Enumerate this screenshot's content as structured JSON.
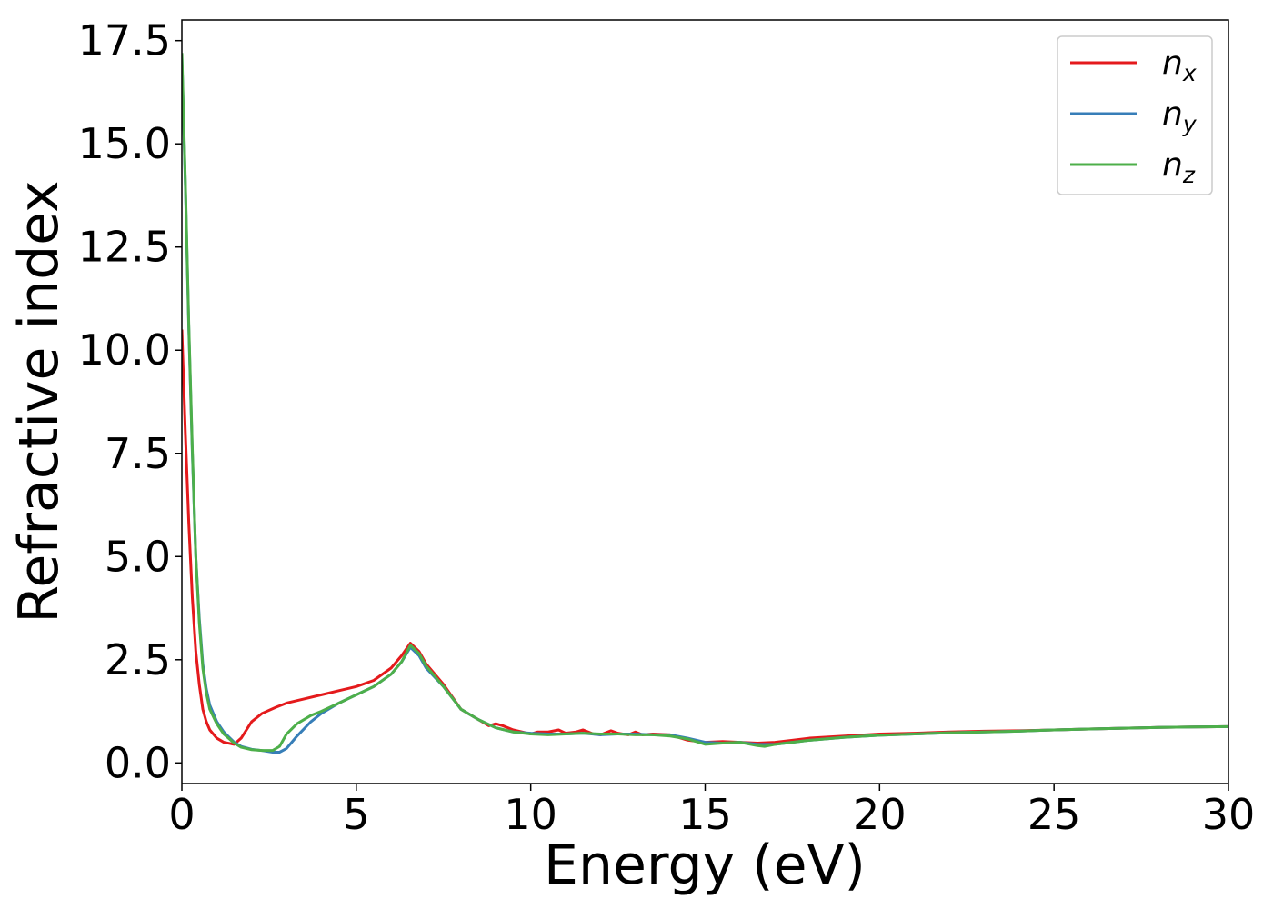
{
  "chart_data": {
    "type": "line",
    "xlabel": "Energy (eV)",
    "ylabel": "Refractive index",
    "xlim": [
      0,
      30
    ],
    "ylim": [
      -0.5,
      18.0
    ],
    "xticks": [
      0,
      5,
      10,
      15,
      20,
      25,
      30
    ],
    "xtick_labels": [
      "0",
      "5",
      "10",
      "15",
      "20",
      "25",
      "30"
    ],
    "yticks": [
      0.0,
      2.5,
      5.0,
      7.5,
      10.0,
      12.5,
      15.0,
      17.5
    ],
    "ytick_labels": [
      "0.0",
      "2.5",
      "5.0",
      "7.5",
      "10.0",
      "12.5",
      "15.0",
      "17.5"
    ],
    "grid": false,
    "legend_position": "top-right",
    "series": [
      {
        "name": "n_x",
        "label_main": "n",
        "label_sub": "x",
        "color": "#e41a1c",
        "x": [
          0,
          0.1,
          0.2,
          0.3,
          0.4,
          0.5,
          0.6,
          0.7,
          0.8,
          1.0,
          1.2,
          1.5,
          1.7,
          2.0,
          2.3,
          2.7,
          3.0,
          3.5,
          4.0,
          4.5,
          5.0,
          5.5,
          6.0,
          6.3,
          6.55,
          6.8,
          7.0,
          7.5,
          8.0,
          8.5,
          8.8,
          9.0,
          9.2,
          9.5,
          10.0,
          10.2,
          10.5,
          10.8,
          11.0,
          11.3,
          11.5,
          11.8,
          12.0,
          12.3,
          12.5,
          12.8,
          13.0,
          13.2,
          13.5,
          14.0,
          14.5,
          15.0,
          15.5,
          16.0,
          16.5,
          17.0,
          17.5,
          18.0,
          19.0,
          20.0,
          21.0,
          22.0,
          23.0,
          24.0,
          25.0,
          26.0,
          27.0,
          28.0,
          29.0,
          30.0
        ],
        "y": [
          10.5,
          8.0,
          5.8,
          4.0,
          2.7,
          1.9,
          1.3,
          1.0,
          0.8,
          0.6,
          0.5,
          0.45,
          0.6,
          1.0,
          1.2,
          1.35,
          1.45,
          1.55,
          1.65,
          1.75,
          1.85,
          2.0,
          2.3,
          2.6,
          2.9,
          2.7,
          2.4,
          1.9,
          1.3,
          1.05,
          0.9,
          0.95,
          0.9,
          0.8,
          0.7,
          0.75,
          0.75,
          0.8,
          0.72,
          0.75,
          0.8,
          0.7,
          0.68,
          0.78,
          0.72,
          0.68,
          0.75,
          0.68,
          0.7,
          0.68,
          0.55,
          0.5,
          0.52,
          0.5,
          0.48,
          0.5,
          0.55,
          0.6,
          0.65,
          0.7,
          0.72,
          0.75,
          0.77,
          0.78,
          0.8,
          0.82,
          0.84,
          0.86,
          0.87,
          0.88
        ]
      },
      {
        "name": "n_y",
        "label_main": "n",
        "label_sub": "y",
        "color": "#377eb8",
        "x": [
          0,
          0.1,
          0.2,
          0.3,
          0.4,
          0.5,
          0.6,
          0.7,
          0.8,
          1.0,
          1.2,
          1.5,
          1.7,
          2.0,
          2.3,
          2.6,
          2.8,
          3.0,
          3.3,
          3.7,
          4.0,
          4.5,
          5.0,
          5.5,
          6.0,
          6.3,
          6.55,
          6.8,
          7.0,
          7.5,
          8.0,
          8.5,
          9.0,
          9.5,
          10.0,
          10.5,
          11.0,
          11.5,
          12.0,
          12.5,
          13.0,
          13.5,
          14.0,
          14.5,
          15.0,
          15.5,
          16.0,
          16.5,
          17.0,
          17.5,
          18.0,
          19.0,
          20.0,
          21.0,
          22.0,
          23.0,
          24.0,
          25.0,
          26.0,
          27.0,
          28.0,
          29.0,
          30.0
        ],
        "y": [
          17.1,
          14.0,
          10.5,
          7.5,
          5.0,
          3.5,
          2.4,
          1.8,
          1.4,
          1.0,
          0.75,
          0.5,
          0.4,
          0.33,
          0.3,
          0.26,
          0.26,
          0.35,
          0.65,
          1.0,
          1.2,
          1.45,
          1.65,
          1.85,
          2.15,
          2.45,
          2.8,
          2.6,
          2.3,
          1.85,
          1.3,
          1.05,
          0.85,
          0.75,
          0.72,
          0.7,
          0.7,
          0.72,
          0.68,
          0.7,
          0.7,
          0.68,
          0.68,
          0.6,
          0.5,
          0.48,
          0.5,
          0.45,
          0.45,
          0.5,
          0.55,
          0.62,
          0.67,
          0.7,
          0.73,
          0.75,
          0.77,
          0.8,
          0.82,
          0.84,
          0.86,
          0.87,
          0.88
        ]
      },
      {
        "name": "n_z",
        "label_main": "n",
        "label_sub": "z",
        "color": "#4daf4a",
        "x": [
          0,
          0.1,
          0.2,
          0.3,
          0.4,
          0.5,
          0.6,
          0.7,
          0.8,
          1.0,
          1.2,
          1.5,
          1.7,
          2.0,
          2.3,
          2.6,
          2.8,
          3.0,
          3.3,
          3.7,
          4.0,
          4.5,
          5.0,
          5.5,
          6.0,
          6.3,
          6.55,
          6.8,
          7.0,
          7.5,
          8.0,
          8.5,
          9.0,
          9.5,
          10.0,
          10.5,
          11.0,
          11.5,
          12.0,
          12.5,
          13.0,
          13.5,
          14.0,
          14.5,
          15.0,
          15.5,
          16.0,
          16.5,
          16.7,
          17.0,
          17.5,
          18.0,
          19.0,
          20.0,
          21.0,
          22.0,
          23.0,
          24.0,
          25.0,
          26.0,
          27.0,
          28.0,
          29.0,
          30.0
        ],
        "y": [
          17.2,
          14.1,
          10.6,
          7.6,
          5.0,
          3.4,
          2.3,
          1.7,
          1.3,
          0.95,
          0.7,
          0.48,
          0.38,
          0.32,
          0.3,
          0.3,
          0.4,
          0.7,
          0.95,
          1.15,
          1.25,
          1.45,
          1.65,
          1.85,
          2.15,
          2.45,
          2.85,
          2.65,
          2.35,
          1.85,
          1.3,
          1.05,
          0.85,
          0.75,
          0.7,
          0.68,
          0.7,
          0.72,
          0.7,
          0.7,
          0.68,
          0.68,
          0.65,
          0.58,
          0.45,
          0.48,
          0.5,
          0.42,
          0.4,
          0.45,
          0.5,
          0.55,
          0.62,
          0.67,
          0.7,
          0.73,
          0.75,
          0.77,
          0.8,
          0.82,
          0.84,
          0.86,
          0.87,
          0.88
        ]
      }
    ]
  }
}
